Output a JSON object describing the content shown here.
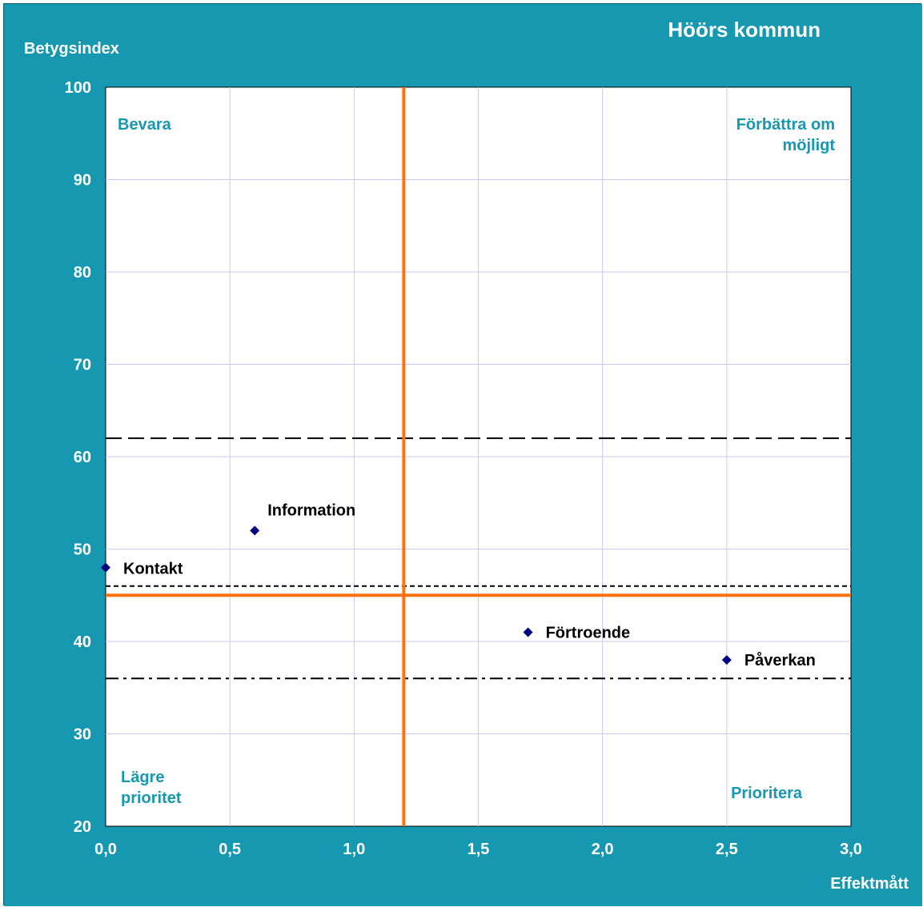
{
  "colors": {
    "frame_background": "#1698b0",
    "plot_background": "#ffffff",
    "grid": "#c9c9ee",
    "reference_lines": "#ff7010",
    "marker": "#000080",
    "quadrant_text": "#1698b0",
    "axis_text": "#ffffff"
  },
  "chart_data": {
    "type": "scatter",
    "title": "Höörs kommun",
    "xlabel": "Effektmått",
    "ylabel": "Betygsindex",
    "xlim": [
      0,
      3.0
    ],
    "ylim": [
      20,
      100
    ],
    "x_ticks": [
      {
        "value": 0,
        "label": "0,0"
      },
      {
        "value": 0.5,
        "label": "0,5"
      },
      {
        "value": 1.0,
        "label": "1,0"
      },
      {
        "value": 1.5,
        "label": "1,5"
      },
      {
        "value": 2.0,
        "label": "2,0"
      },
      {
        "value": 2.5,
        "label": "2,5"
      },
      {
        "value": 3.0,
        "label": "3,0"
      }
    ],
    "y_ticks": [
      {
        "value": 20,
        "label": "20"
      },
      {
        "value": 30,
        "label": "30"
      },
      {
        "value": 40,
        "label": "40"
      },
      {
        "value": 50,
        "label": "50"
      },
      {
        "value": 60,
        "label": "60"
      },
      {
        "value": 70,
        "label": "70"
      },
      {
        "value": 80,
        "label": "80"
      },
      {
        "value": 90,
        "label": "90"
      },
      {
        "value": 100,
        "label": "100"
      }
    ],
    "grid": true,
    "points": [
      {
        "label": "Information",
        "x": 0.6,
        "y": 52
      },
      {
        "label": "Kontakt",
        "x": 0.0,
        "y": 48
      },
      {
        "label": "Förtroende",
        "x": 1.7,
        "y": 41
      },
      {
        "label": "Påverkan",
        "x": 2.5,
        "y": 38
      }
    ],
    "reference_lines": {
      "vertical_x": 1.2,
      "horizontal_y": 45
    },
    "horizontal_dashed_lines": [
      {
        "y": 62,
        "style": "long-dash"
      },
      {
        "y": 46,
        "style": "short-dash"
      },
      {
        "y": 36,
        "style": "dash-dot"
      }
    ],
    "quadrant_labels": {
      "top_left": [
        "Bevara"
      ],
      "top_right": [
        "Förbättra om",
        "möjligt"
      ],
      "bottom_left": [
        "Lägre",
        "prioritet"
      ],
      "bottom_right": [
        "Prioritera"
      ]
    }
  }
}
